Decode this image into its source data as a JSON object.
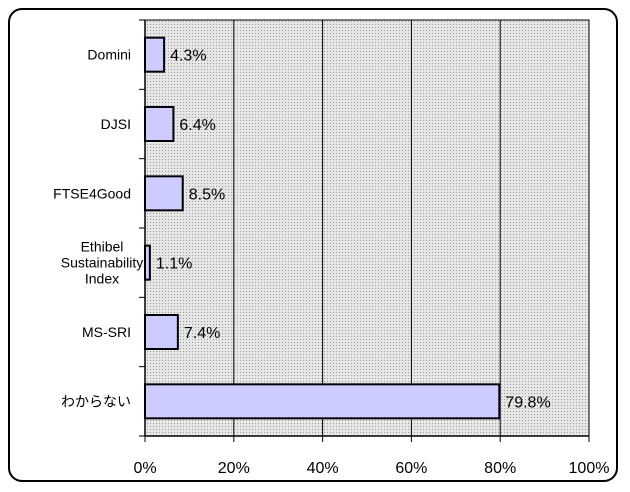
{
  "chart_data": {
    "type": "bar",
    "orientation": "horizontal",
    "categories": [
      "Domini",
      "DJSI",
      "FTSE4Good",
      "Ethibel Sustainability Index",
      "MS-SRI",
      "わからない"
    ],
    "category_lines": [
      [
        "Domini"
      ],
      [
        "DJSI"
      ],
      [
        "FTSE4Good"
      ],
      [
        "Ethibel",
        "Sustainability",
        "Index"
      ],
      [
        "MS-SRI"
      ],
      [
        "わからない"
      ]
    ],
    "values": [
      4.3,
      6.4,
      8.5,
      1.1,
      7.4,
      79.8
    ],
    "value_labels": [
      "4.3%",
      "6.4%",
      "8.5%",
      "1.1%",
      "7.4%",
      "79.8%"
    ],
    "xlim": [
      0,
      100
    ],
    "xticks": [
      0,
      20,
      40,
      60,
      80,
      100
    ],
    "xtick_labels": [
      "0%",
      "20%",
      "40%",
      "60%",
      "80%",
      "100%"
    ],
    "grid": true,
    "legend": "none",
    "bar_color": "#ccccff",
    "plot_background": "#c0c0c0"
  }
}
